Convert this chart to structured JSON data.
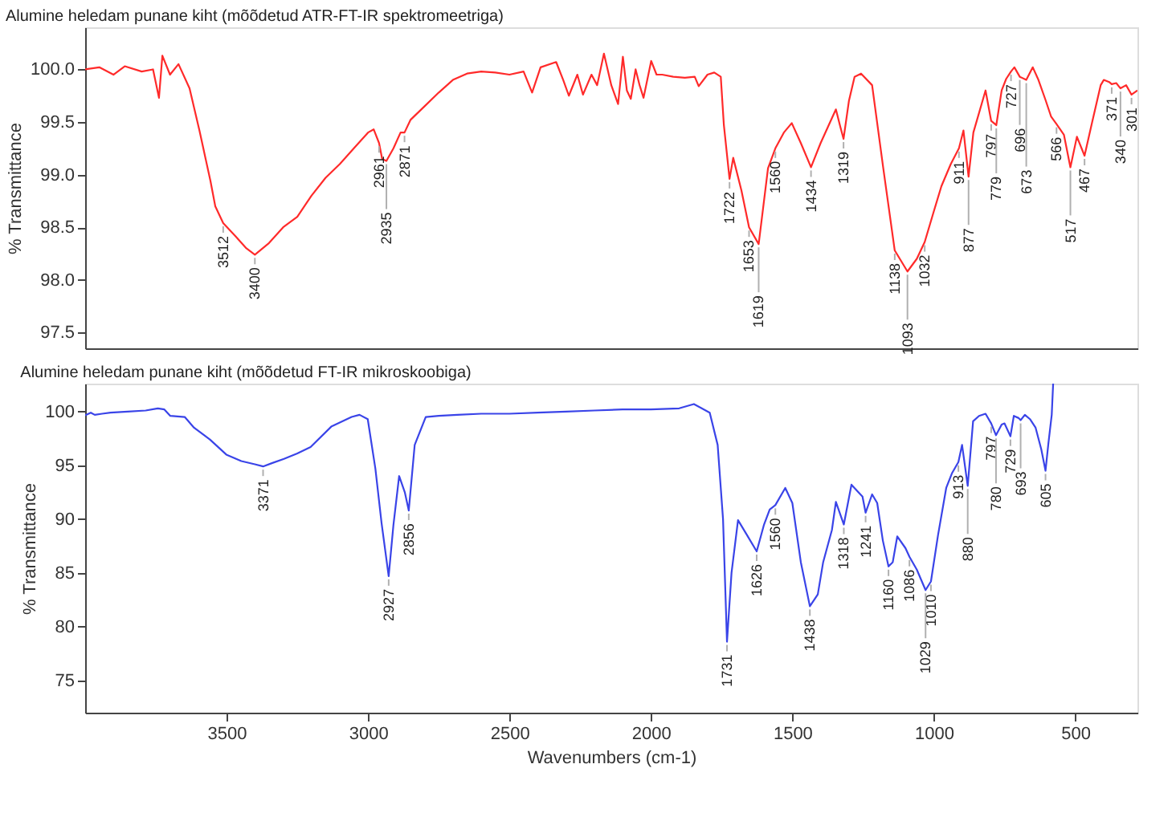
{
  "chart_data": [
    {
      "type": "line",
      "title": "Alumine heledam punane kiht (mõõdetud ATR-FT-IR spektromeetriga)",
      "ylabel": "% Transmittance",
      "tick_labels": "y",
      "xlim": [
        4000,
        280
      ],
      "ylim": [
        97.35,
        100.4
      ],
      "yticks": [
        {
          "value": 97.5,
          "label": "97.5"
        },
        {
          "value": 98,
          "label": "98.0"
        },
        {
          "value": 98.5,
          "label": "98.5"
        },
        {
          "value": 99,
          "label": "99.0"
        },
        {
          "value": 99.5,
          "label": "99.5"
        },
        {
          "value": 100,
          "label": "100.0"
        }
      ],
      "x": [
        4000,
        3950,
        3900,
        3860,
        3800,
        3760,
        3739,
        3727,
        3700,
        3670,
        3631,
        3596,
        3557,
        3540,
        3512,
        3470,
        3430,
        3400,
        3350,
        3300,
        3250,
        3200,
        3150,
        3100,
        3050,
        3000,
        2980,
        2961,
        2950,
        2935,
        2910,
        2885,
        2871,
        2850,
        2800,
        2750,
        2700,
        2650,
        2600,
        2550,
        2500,
        2450,
        2420,
        2390,
        2335,
        2310,
        2290,
        2260,
        2240,
        2210,
        2190,
        2166,
        2140,
        2116,
        2099,
        2085,
        2071,
        2054,
        2040,
        2026,
        1999,
        1980,
        1960,
        1921,
        1880,
        1845,
        1831,
        1800,
        1776,
        1753,
        1742,
        1722,
        1709,
        1680,
        1653,
        1619,
        1586,
        1560,
        1530,
        1502,
        1470,
        1434,
        1400,
        1346,
        1330,
        1319,
        1300,
        1280,
        1257,
        1218,
        1179,
        1138,
        1093,
        1060,
        1032,
        1000,
        973,
        940,
        911,
        895,
        877,
        860,
        817,
        797,
        779,
        760,
        744,
        727,
        715,
        696,
        673,
        650,
        630,
        605,
        585,
        566,
        540,
        517,
        494,
        467,
        440,
        410,
        399,
        380,
        371,
        355,
        340,
        320,
        301,
        280
      ],
      "series": [
        {
          "color": "#ff2a2a",
          "values": [
            100.0,
            100.02,
            99.95,
            100.03,
            99.98,
            100.0,
            99.73,
            100.13,
            99.95,
            100.05,
            99.82,
            99.42,
            98.94,
            98.7,
            98.54,
            98.42,
            98.3,
            98.24,
            98.35,
            98.5,
            98.6,
            98.8,
            98.97,
            99.1,
            99.25,
            99.4,
            99.43,
            99.3,
            99.15,
            99.13,
            99.25,
            99.4,
            99.4,
            99.52,
            99.65,
            99.78,
            99.9,
            99.96,
            99.98,
            99.97,
            99.95,
            99.98,
            99.78,
            100.02,
            100.07,
            99.9,
            99.75,
            99.95,
            99.76,
            99.95,
            99.85,
            100.15,
            99.85,
            99.67,
            100.12,
            99.8,
            99.72,
            100.0,
            99.85,
            99.73,
            100.08,
            99.95,
            99.95,
            99.93,
            99.92,
            99.93,
            99.84,
            99.95,
            99.97,
            99.93,
            99.47,
            98.96,
            99.16,
            98.85,
            98.5,
            98.34,
            99.06,
            99.25,
            99.4,
            99.49,
            99.3,
            99.07,
            99.3,
            99.62,
            99.45,
            99.34,
            99.7,
            99.93,
            99.96,
            99.85,
            99.07,
            98.28,
            98.08,
            98.2,
            98.36,
            98.65,
            98.89,
            99.1,
            99.25,
            99.42,
            98.98,
            99.4,
            99.8,
            99.51,
            99.47,
            99.8,
            99.91,
            99.98,
            100.02,
            99.93,
            99.9,
            100.02,
            99.9,
            99.71,
            99.55,
            99.48,
            99.38,
            99.07,
            99.36,
            99.18,
            99.5,
            99.85,
            99.9,
            99.88,
            99.86,
            99.87,
            99.82,
            99.85,
            99.76,
            99.8
          ]
        }
      ],
      "annotations": [
        {
          "text": "3512",
          "x": 3512,
          "y": 98.54
        },
        {
          "text": "3400",
          "x": 3400,
          "y": 98.24
        },
        {
          "text": "2961",
          "x": 2961,
          "y": 99.3
        },
        {
          "text": "2935",
          "x": 2935,
          "y": 99.13
        },
        {
          "text": "2871",
          "x": 2871,
          "y": 99.4
        },
        {
          "text": "1722",
          "x": 1722,
          "y": 98.96
        },
        {
          "text": "1653",
          "x": 1653,
          "y": 98.5
        },
        {
          "text": "1619",
          "x": 1619,
          "y": 98.34
        },
        {
          "text": "1560",
          "x": 1560,
          "y": 99.25
        },
        {
          "text": "1434",
          "x": 1434,
          "y": 99.07
        },
        {
          "text": "1319",
          "x": 1319,
          "y": 99.34
        },
        {
          "text": "1138",
          "x": 1138,
          "y": 98.28
        },
        {
          "text": "1093",
          "x": 1093,
          "y": 98.08
        },
        {
          "text": "1032",
          "x": 1032,
          "y": 98.36
        },
        {
          "text": "911",
          "x": 911,
          "y": 99.25
        },
        {
          "text": "877",
          "x": 877,
          "y": 98.98
        },
        {
          "text": "797",
          "x": 797,
          "y": 99.51
        },
        {
          "text": "779",
          "x": 779,
          "y": 99.47
        },
        {
          "text": "727",
          "x": 727,
          "y": 99.98
        },
        {
          "text": "696",
          "x": 696,
          "y": 99.93
        },
        {
          "text": "673",
          "x": 673,
          "y": 99.9
        },
        {
          "text": "566",
          "x": 566,
          "y": 99.48
        },
        {
          "text": "517",
          "x": 517,
          "y": 99.07
        },
        {
          "text": "467",
          "x": 467,
          "y": 99.18
        },
        {
          "text": "371",
          "x": 371,
          "y": 99.86
        },
        {
          "text": "340",
          "x": 340,
          "y": 99.82
        },
        {
          "text": "301",
          "x": 301,
          "y": 99.76
        }
      ]
    },
    {
      "type": "line",
      "title": "Alumine heledam punane kiht (mõõdetud FT-IR mikroskoobiga)",
      "ylabel": "% Transmittance",
      "xlabel": "Wavenumbers (cm-1)",
      "xlim": [
        4000,
        280
      ],
      "ylim": [
        72,
        102.6
      ],
      "xticks": [
        3500,
        3000,
        2500,
        2000,
        1500,
        1000,
        500
      ],
      "yticks": [
        75,
        80,
        85,
        90,
        95,
        100
      ],
      "x": [
        4000,
        3980,
        3966,
        3940,
        3910,
        3850,
        3786,
        3743,
        3720,
        3699,
        3648,
        3615,
        3559,
        3501,
        3448,
        3400,
        3371,
        3340,
        3297,
        3250,
        3203,
        3130,
        3058,
        3030,
        3001,
        2974,
        2952,
        2927,
        2910,
        2890,
        2870,
        2856,
        2835,
        2796,
        2750,
        2684,
        2600,
        2500,
        2400,
        2300,
        2200,
        2100,
        2000,
        1900,
        1848,
        1792,
        1764,
        1745,
        1731,
        1715,
        1692,
        1660,
        1626,
        1600,
        1580,
        1560,
        1525,
        1500,
        1470,
        1438,
        1410,
        1391,
        1360,
        1346,
        1318,
        1291,
        1270,
        1252,
        1241,
        1218,
        1200,
        1180,
        1160,
        1145,
        1129,
        1100,
        1086,
        1060,
        1029,
        1010,
        985,
        956,
        935,
        913,
        900,
        880,
        861,
        840,
        817,
        797,
        780,
        760,
        750,
        729,
        717,
        700,
        693,
        678,
        660,
        640,
        620,
        605,
        595,
        583,
        578
      ],
      "series": [
        {
          "color": "#3a44e8",
          "values": [
            99.66,
            99.9,
            99.7,
            99.8,
            99.9,
            100.0,
            100.1,
            100.3,
            100.2,
            99.6,
            99.5,
            98.5,
            97.4,
            96.0,
            95.4,
            95.1,
            94.9,
            95.2,
            95.6,
            96.1,
            96.7,
            98.6,
            99.5,
            99.7,
            99.3,
            94.7,
            89.6,
            84.7,
            89.5,
            94.0,
            92.5,
            90.8,
            96.9,
            99.5,
            99.6,
            99.7,
            99.8,
            99.8,
            99.9,
            100.0,
            100.1,
            100.2,
            100.2,
            100.3,
            100.7,
            99.9,
            96.9,
            90.0,
            78.6,
            85.0,
            89.9,
            88.5,
            87.0,
            89.5,
            90.9,
            91.3,
            92.9,
            91.5,
            86.0,
            81.9,
            83.0,
            86.0,
            89.0,
            91.6,
            89.5,
            93.2,
            92.6,
            92.1,
            90.6,
            92.3,
            91.5,
            88.0,
            85.6,
            86.0,
            88.4,
            87.3,
            86.5,
            85.3,
            83.4,
            84.2,
            88.5,
            92.9,
            94.3,
            95.3,
            96.9,
            93.1,
            99.1,
            99.6,
            99.8,
            98.9,
            97.8,
            98.8,
            98.9,
            97.7,
            99.6,
            99.4,
            99.2,
            99.7,
            99.3,
            98.5,
            96.5,
            94.5,
            97.0,
            99.7,
            102.6
          ]
        }
      ],
      "annotations": [
        {
          "text": "3371",
          "x": 3371,
          "y": 94.9
        },
        {
          "text": "2927",
          "x": 2927,
          "y": 84.7
        },
        {
          "text": "2856",
          "x": 2856,
          "y": 90.8
        },
        {
          "text": "1731",
          "x": 1731,
          "y": 78.6
        },
        {
          "text": "1626",
          "x": 1626,
          "y": 87.0
        },
        {
          "text": "1560",
          "x": 1560,
          "y": 91.3
        },
        {
          "text": "1438",
          "x": 1438,
          "y": 81.9
        },
        {
          "text": "1318",
          "x": 1318,
          "y": 89.5
        },
        {
          "text": "1241",
          "x": 1241,
          "y": 90.6
        },
        {
          "text": "1160",
          "x": 1160,
          "y": 85.6
        },
        {
          "text": "1086",
          "x": 1086,
          "y": 86.5
        },
        {
          "text": "1029",
          "x": 1029,
          "y": 83.4
        },
        {
          "text": "1010",
          "x": 1010,
          "y": 84.2
        },
        {
          "text": "913",
          "x": 913,
          "y": 95.3
        },
        {
          "text": "880",
          "x": 880,
          "y": 93.1
        },
        {
          "text": "797",
          "x": 797,
          "y": 98.9
        },
        {
          "text": "780",
          "x": 780,
          "y": 97.8
        },
        {
          "text": "729",
          "x": 729,
          "y": 97.7
        },
        {
          "text": "693",
          "x": 693,
          "y": 99.2
        },
        {
          "text": "605",
          "x": 605,
          "y": 94.5
        }
      ]
    }
  ]
}
